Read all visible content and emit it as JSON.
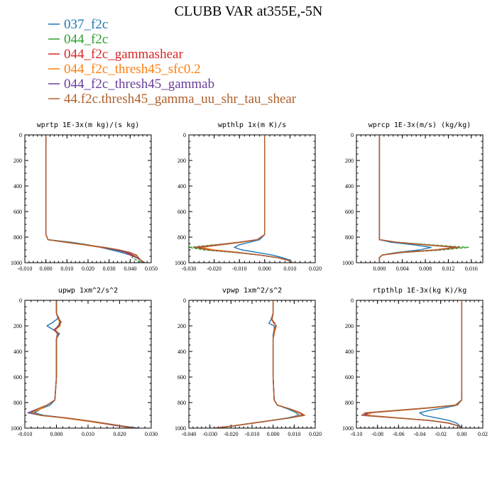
{
  "figure": {
    "title": "CLUBB VAR at355E,-5N",
    "legend": [
      {
        "label": "037_f2c",
        "color": "#1f77b4"
      },
      {
        "label": "044_f2c",
        "color": "#2ca02c"
      },
      {
        "label": "044_f2c_gammashear",
        "color": "#d62728"
      },
      {
        "label": "044_f2c_thresh45_sfc0.2",
        "color": "#ff7f0e"
      },
      {
        "label": "044_f2c_thresh45_gammab",
        "color": "#6a3d9a"
      },
      {
        "label": "44.f2c.thresh45_gamma_uu_shr_tau_shear",
        "color": "#b0602c"
      }
    ]
  },
  "chart_data": [
    {
      "type": "line",
      "title": "wprtp  1E-3x(m kg)/(s kg)",
      "xlim": [
        -0.01,
        0.05
      ],
      "ylim": [
        0,
        1000
      ],
      "y_inverted": true,
      "xtick_labels": [
        "-0.010",
        "0.000",
        "0.010",
        "0.020",
        "0.030",
        "0.040",
        "0.050"
      ],
      "ytick_labels": [
        "0",
        "200",
        "400",
        "600",
        "800",
        "1000"
      ],
      "y_levels": [
        0,
        200,
        400,
        600,
        780,
        820,
        840,
        860,
        880,
        900,
        920,
        940,
        960,
        980,
        1000
      ],
      "series": [
        {
          "values": [
            0,
            0,
            0,
            0,
            0,
            0.001,
            0.012,
            0.02,
            0.026,
            0.031,
            0.036,
            0.04,
            0.043,
            0.045,
            0.046
          ]
        },
        {
          "values": [
            0,
            0,
            0,
            0,
            0,
            0.001,
            0.009,
            0.018,
            0.026,
            0.033,
            0.038,
            0.041,
            0.041,
            0.043,
            0.046
          ]
        },
        {
          "values": [
            0,
            0,
            0,
            0,
            0,
            0.001,
            0.01,
            0.019,
            0.027,
            0.034,
            0.038,
            0.04,
            0.043,
            0.045,
            0.047
          ]
        },
        {
          "values": [
            0,
            0,
            0,
            0,
            0,
            0.001,
            0.009,
            0.018,
            0.026,
            0.034,
            0.04,
            0.042,
            0.044,
            0.045,
            0.047
          ]
        },
        {
          "values": [
            0,
            0,
            0,
            0,
            0,
            0.001,
            0.01,
            0.019,
            0.027,
            0.033,
            0.039,
            0.041,
            0.043,
            0.045,
            0.046
          ]
        },
        {
          "values": [
            0,
            0,
            0,
            0,
            0,
            0.001,
            0.01,
            0.019,
            0.028,
            0.035,
            0.04,
            0.043,
            0.044,
            0.045,
            0.047
          ]
        }
      ]
    },
    {
      "type": "line",
      "title": "wpthlp  1x(m K)/s",
      "xlim": [
        -0.03,
        0.02
      ],
      "ylim": [
        0,
        1000
      ],
      "y_inverted": true,
      "xtick_labels": [
        "-0.030",
        "-0.020",
        "-0.010",
        "0.000",
        "0.010",
        "0.020"
      ],
      "ytick_labels": [
        "0",
        "200",
        "400",
        "600",
        "800",
        "1000"
      ],
      "y_levels": [
        0,
        200,
        400,
        600,
        780,
        820,
        840,
        860,
        880,
        900,
        920,
        940,
        960,
        980,
        1000
      ],
      "series": [
        {
          "values": [
            0,
            0,
            0,
            0,
            0,
            -0.002,
            -0.006,
            -0.01,
            -0.012,
            -0.009,
            -0.003,
            0.003,
            0.007,
            0.01,
            0.011
          ]
        },
        {
          "values": [
            0,
            0,
            0,
            0,
            0,
            -0.003,
            -0.01,
            -0.02,
            -0.03,
            -0.024,
            -0.012,
            -0.002,
            0.005,
            0.009,
            0.011
          ]
        },
        {
          "values": [
            0,
            0,
            0,
            0,
            0,
            -0.003,
            -0.01,
            -0.018,
            -0.026,
            -0.021,
            -0.011,
            -0.002,
            0.005,
            0.009,
            0.011
          ]
        },
        {
          "values": [
            0,
            0,
            0,
            0,
            0,
            -0.003,
            -0.009,
            -0.017,
            -0.025,
            -0.02,
            -0.01,
            -0.002,
            0.005,
            0.009,
            0.011
          ]
        },
        {
          "values": [
            0,
            0,
            0,
            0,
            0,
            -0.003,
            -0.01,
            -0.018,
            -0.027,
            -0.022,
            -0.011,
            -0.002,
            0.005,
            0.009,
            0.011
          ]
        },
        {
          "values": [
            0,
            0,
            0,
            0,
            0,
            -0.003,
            -0.01,
            -0.019,
            -0.028,
            -0.022,
            -0.011,
            -0.002,
            0.005,
            0.009,
            0.011
          ]
        }
      ]
    },
    {
      "type": "line",
      "title": "wprcp  1E-3x(m/s) (kg/kg)",
      "xlim": [
        -0.004,
        0.018
      ],
      "ylim": [
        0,
        1000
      ],
      "y_inverted": true,
      "xtick_labels": [
        "0.000",
        "0.004",
        "0.008",
        "0.012",
        "0.016"
      ],
      "ytick_labels": [
        "0",
        "200",
        "400",
        "600",
        "800",
        "1000"
      ],
      "y_levels": [
        0,
        200,
        400,
        600,
        780,
        820,
        840,
        860,
        880,
        900,
        920,
        940,
        960,
        980,
        1000
      ],
      "series": [
        {
          "values": [
            0,
            0,
            0,
            0,
            0,
            0,
            0.002,
            0.006,
            0.009,
            0.007,
            0.003,
            0.0005,
            0,
            0,
            0
          ]
        },
        {
          "values": [
            0,
            0,
            0,
            0,
            0,
            0,
            0.003,
            0.009,
            0.0155,
            0.011,
            0.004,
            0.0005,
            0,
            0,
            0
          ]
        },
        {
          "values": [
            0,
            0,
            0,
            0,
            0,
            0,
            0.003,
            0.008,
            0.0135,
            0.01,
            0.004,
            0.0005,
            0,
            0,
            0
          ]
        },
        {
          "values": [
            0,
            0,
            0,
            0,
            0,
            0,
            0.003,
            0.008,
            0.013,
            0.0095,
            0.0035,
            0.0005,
            0,
            0,
            0
          ]
        },
        {
          "values": [
            0,
            0,
            0,
            0,
            0,
            0,
            0.003,
            0.008,
            0.0135,
            0.01,
            0.004,
            0.0005,
            0,
            0,
            0
          ]
        },
        {
          "values": [
            0,
            0,
            0,
            0,
            0,
            0,
            0.003,
            0.008,
            0.014,
            0.01,
            0.004,
            0.0005,
            0,
            0,
            0
          ]
        }
      ]
    },
    {
      "type": "line",
      "title": "upwp  1xm^2/s^2",
      "xlim": [
        -0.01,
        0.03
      ],
      "ylim": [
        0,
        1000
      ],
      "y_inverted": true,
      "xtick_labels": [
        "-0.010",
        "0.000",
        "0.010",
        "0.020",
        "0.030"
      ],
      "ytick_labels": [
        "0",
        "200",
        "400",
        "600",
        "800",
        "1000"
      ],
      "y_levels": [
        0,
        100,
        140,
        170,
        200,
        230,
        260,
        300,
        400,
        600,
        780,
        820,
        850,
        880,
        900,
        920,
        950,
        980,
        1000
      ],
      "series": [
        {
          "values": [
            0,
            0,
            0.0005,
            -0.001,
            -0.003,
            -0.001,
            0.001,
            0,
            0,
            0,
            -0.0005,
            -0.002,
            -0.005,
            -0.007,
            -0.004,
            0.003,
            0.012,
            0.02,
            0.026
          ]
        },
        {
          "values": [
            0,
            0,
            0.0008,
            0.001,
            0.0005,
            -0.0005,
            0.0005,
            0,
            0,
            0,
            -0.0005,
            -0.003,
            -0.006,
            -0.009,
            -0.005,
            0.003,
            0.012,
            0.019,
            0.025
          ]
        },
        {
          "values": [
            0,
            0,
            0.0006,
            0.0015,
            0.0008,
            -0.0008,
            0.0003,
            0,
            0,
            0,
            -0.0005,
            -0.003,
            -0.006,
            -0.008,
            -0.005,
            0.003,
            0.012,
            0.019,
            0.025
          ]
        },
        {
          "values": [
            0,
            0,
            0.0004,
            0.001,
            0.0012,
            -0.0003,
            0.0006,
            0,
            0,
            0,
            -0.0005,
            -0.003,
            -0.005,
            -0.008,
            -0.005,
            0.002,
            0.011,
            0.019,
            0.024
          ]
        },
        {
          "values": [
            0,
            0,
            0.0007,
            0.0012,
            0.0006,
            -0.0006,
            0.0004,
            0,
            0,
            0,
            -0.0005,
            -0.003,
            -0.006,
            -0.009,
            -0.005,
            0.003,
            0.012,
            0.019,
            0.025
          ]
        },
        {
          "values": [
            0,
            0,
            0.0005,
            0.0014,
            0.0009,
            -0.0004,
            0.0005,
            0,
            0,
            0,
            -0.0005,
            -0.003,
            -0.006,
            -0.008,
            -0.005,
            0.003,
            0.012,
            0.02,
            0.025
          ]
        }
      ]
    },
    {
      "type": "line",
      "title": "vpwp  1xm^2/s^2",
      "xlim": [
        -0.04,
        0.02
      ],
      "ylim": [
        0,
        1000
      ],
      "y_inverted": true,
      "xtick_labels": [
        "-0.040",
        "-0.030",
        "-0.020",
        "-0.010",
        "0.000",
        "0.010",
        "0.020"
      ],
      "ytick_labels": [
        "0",
        "200",
        "400",
        "600",
        "800",
        "1000"
      ],
      "y_levels": [
        0,
        100,
        150,
        180,
        200,
        230,
        270,
        300,
        400,
        600,
        780,
        820,
        850,
        880,
        900,
        920,
        950,
        980,
        1000
      ],
      "series": [
        {
          "values": [
            0,
            0,
            -0.001,
            -0.002,
            0.0005,
            0.0005,
            0,
            0,
            0,
            0,
            0.0005,
            0.002,
            0.007,
            0.011,
            0.012,
            0.007,
            -0.005,
            -0.018,
            -0.026
          ]
        },
        {
          "values": [
            0,
            0,
            -0.0005,
            0.0005,
            0.0015,
            0.0008,
            0.0003,
            0,
            0,
            0,
            0.0005,
            0.002,
            0.008,
            0.013,
            0.014,
            0.008,
            -0.005,
            -0.018,
            -0.027
          ]
        },
        {
          "values": [
            0,
            0,
            -0.0005,
            0.0008,
            0.0012,
            0.0005,
            0.0002,
            0,
            0,
            0,
            0.0005,
            0.002,
            0.008,
            0.013,
            0.014,
            0.008,
            -0.005,
            -0.018,
            -0.027
          ]
        },
        {
          "values": [
            0,
            0,
            -0.0008,
            0.0003,
            0.0016,
            0.001,
            0.0004,
            0,
            0,
            0,
            0.0005,
            0.002,
            0.008,
            0.012,
            0.013,
            0.008,
            -0.005,
            -0.018,
            -0.026
          ]
        },
        {
          "values": [
            0,
            0,
            -0.0006,
            0.0006,
            0.0014,
            0.0007,
            0.0003,
            0,
            0,
            0,
            0.0005,
            0.002,
            0.008,
            0.013,
            0.014,
            0.008,
            -0.005,
            -0.018,
            -0.027
          ]
        },
        {
          "values": [
            0,
            0,
            -0.0005,
            0.0007,
            0.0013,
            0.0006,
            0.0003,
            0,
            0,
            0,
            0.0005,
            0.002,
            0.008,
            0.013,
            0.015,
            0.008,
            -0.005,
            -0.018,
            -0.028
          ]
        }
      ]
    },
    {
      "type": "line",
      "title": "rtpthlp  1E-3x(kg K)/kg",
      "xlim": [
        -0.1,
        0.02
      ],
      "ylim": [
        0,
        1000
      ],
      "y_inverted": true,
      "xtick_labels": [
        "-0.10",
        "-0.08",
        "-0.06",
        "-0.04",
        "-0.02",
        "0.00",
        "0.02"
      ],
      "ytick_labels": [
        "0",
        "200",
        "400",
        "600",
        "800",
        "1000"
      ],
      "y_levels": [
        0,
        200,
        400,
        600,
        780,
        820,
        840,
        860,
        880,
        900,
        920,
        940,
        960,
        980,
        1000
      ],
      "series": [
        {
          "values": [
            0,
            0,
            0,
            0,
            0,
            -0.004,
            -0.016,
            -0.03,
            -0.04,
            -0.036,
            -0.024,
            -0.012,
            -0.005,
            -0.002,
            0
          ]
        },
        {
          "values": [
            0,
            0,
            0,
            0,
            0,
            -0.006,
            -0.03,
            -0.06,
            -0.09,
            -0.09,
            -0.06,
            -0.03,
            -0.012,
            -0.004,
            0
          ]
        },
        {
          "values": [
            0,
            0,
            0,
            0,
            0,
            -0.006,
            -0.029,
            -0.058,
            -0.088,
            -0.092,
            -0.062,
            -0.031,
            -0.013,
            -0.004,
            0
          ]
        },
        {
          "values": [
            0,
            0,
            0,
            0,
            0,
            -0.005,
            -0.027,
            -0.056,
            -0.086,
            -0.089,
            -0.06,
            -0.03,
            -0.012,
            -0.004,
            0
          ]
        },
        {
          "values": [
            0,
            0,
            0,
            0,
            0,
            -0.006,
            -0.029,
            -0.059,
            -0.09,
            -0.093,
            -0.062,
            -0.031,
            -0.013,
            -0.004,
            0
          ]
        },
        {
          "values": [
            0,
            0,
            0,
            0,
            0,
            -0.006,
            -0.03,
            -0.061,
            -0.092,
            -0.095,
            -0.063,
            -0.031,
            -0.013,
            -0.004,
            0
          ]
        }
      ]
    }
  ]
}
